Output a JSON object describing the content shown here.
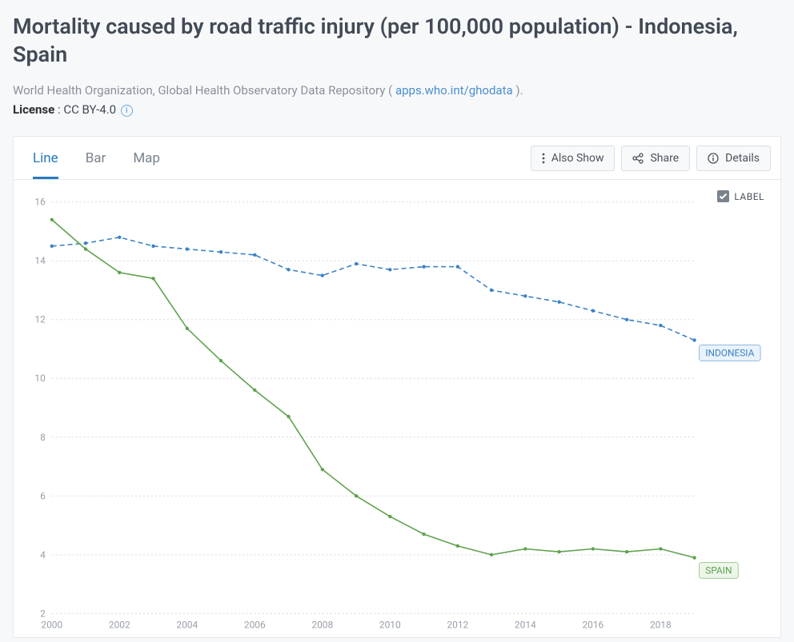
{
  "header": {
    "title": "Mortality caused by road traffic injury (per 100,000 population) - Indonesia, Spain",
    "source_prefix": "World Health Organization, Global Health Observatory Data Repository ( ",
    "source_link_text": "apps.who.int/ghodata",
    "source_suffix": " ).",
    "license_label": "License",
    "license_value": "CC BY-4.0"
  },
  "tabs": {
    "line": "Line",
    "bar": "Bar",
    "map": "Map",
    "active": "line"
  },
  "actions": {
    "also_show": "Also Show",
    "share": "Share",
    "details": "Details"
  },
  "label_toggle": {
    "text": "LABEL",
    "checked": true
  },
  "chart": {
    "type": "line",
    "background_color": "#ffffff",
    "grid_color": "#d6d9de",
    "axis_label_color": "#989fa8",
    "axis_fontsize": 12,
    "xlim": [
      2000,
      2019
    ],
    "ylim": [
      2,
      16
    ],
    "xtick_step": 2,
    "ytick_step": 2,
    "xticks": [
      2000,
      2002,
      2004,
      2006,
      2008,
      2010,
      2012,
      2014,
      2016,
      2018
    ],
    "yticks": [
      2,
      4,
      6,
      8,
      10,
      12,
      14,
      16
    ],
    "line_width": 1.6,
    "marker_radius": 2.2,
    "grid_dash": "2 3",
    "series": [
      {
        "name": "INDONESIA",
        "color": "#3b82c4",
        "tag_bg": "#eaf3fb",
        "tag_border": "#8fb9de",
        "dash": "6 4",
        "x": [
          2000,
          2001,
          2002,
          2003,
          2004,
          2005,
          2006,
          2007,
          2008,
          2009,
          2010,
          2011,
          2012,
          2013,
          2014,
          2015,
          2016,
          2017,
          2018,
          2019
        ],
        "y": [
          14.5,
          14.6,
          14.8,
          14.5,
          14.4,
          14.3,
          14.2,
          13.7,
          13.5,
          13.9,
          13.7,
          13.8,
          13.8,
          13.0,
          12.8,
          12.6,
          12.3,
          12.0,
          11.8,
          11.3
        ]
      },
      {
        "name": "SPAIN",
        "color": "#5fa24e",
        "tag_bg": "#eef6ea",
        "tag_border": "#a4cc96",
        "dash": "none",
        "x": [
          2000,
          2001,
          2002,
          2003,
          2004,
          2005,
          2006,
          2007,
          2008,
          2009,
          2010,
          2011,
          2012,
          2013,
          2014,
          2015,
          2016,
          2017,
          2018,
          2019
        ],
        "y": [
          15.4,
          14.4,
          13.6,
          13.4,
          11.7,
          10.6,
          9.6,
          8.7,
          6.9,
          6.0,
          5.3,
          4.7,
          4.3,
          4.0,
          4.2,
          4.1,
          4.2,
          4.1,
          4.2,
          3.9
        ]
      }
    ]
  }
}
